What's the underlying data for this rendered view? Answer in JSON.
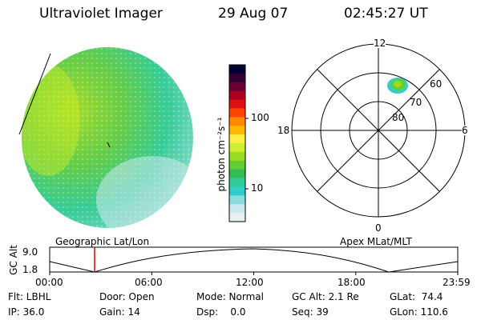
{
  "header": {
    "instrument": "Ultraviolet Imager",
    "date": "29 Aug 07",
    "time": "02:45:27 UT"
  },
  "colorbar": {
    "unit_label": "photon cm⁻²s⁻¹",
    "ticks": [
      "100",
      "10"
    ],
    "colors": [
      "#000033",
      "#330033",
      "#660033",
      "#aa0022",
      "#dd1111",
      "#ff4400",
      "#ff8800",
      "#ffbb00",
      "#ffee44",
      "#ccee33",
      "#99dd22",
      "#66cc33",
      "#33bb55",
      "#33cc99",
      "#33cccc",
      "#88dddd",
      "#cce8ee",
      "#e8f0f4"
    ]
  },
  "polar_plot": {
    "mlt_labels": {
      "top": "12",
      "left": "18",
      "right": "6",
      "bottom": "0"
    },
    "lat_labels": [
      "60",
      "70",
      "80"
    ]
  },
  "timeline": {
    "top_left_label": "Geographic Lat/Lon",
    "top_right_label": "Apex MLat/MLT",
    "y_label": "GC Alt",
    "y_max": "9.0",
    "y_min": "1.8",
    "x_ticks": [
      "00:00",
      "06:00",
      "12:00",
      "18:00",
      "23:59"
    ],
    "cursor_time": "02:45"
  },
  "status": {
    "filter": "Flt: LBHL",
    "ip": "IP: 36.0",
    "door": "Door: Open",
    "gain": "Gain: 14",
    "mode": "Mode: Normal",
    "dsp": "Dsp:    0.0",
    "gc_alt": "GC Alt: 2.1 Re",
    "seq": "Seq: 39",
    "glat": "GLat:  74.4",
    "glon": "GLon: 110.6"
  }
}
